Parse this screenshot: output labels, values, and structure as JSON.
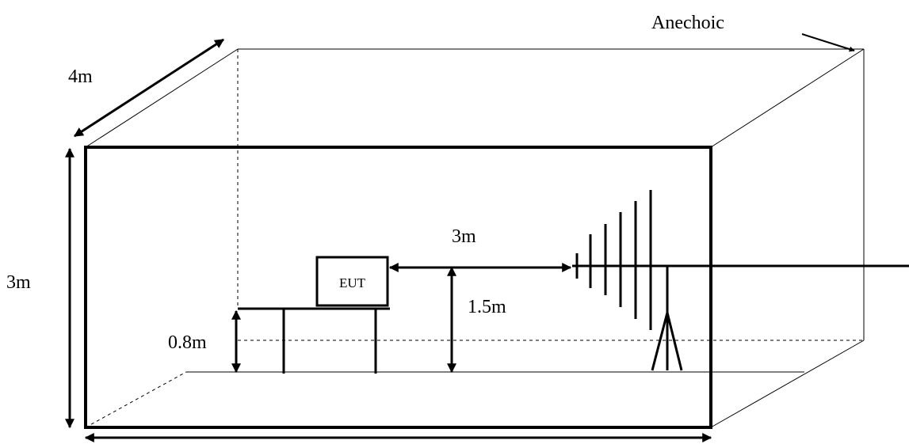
{
  "labels": {
    "chamber": "Anechoic",
    "depth": "4m",
    "height": "3m",
    "distance": "3m",
    "antenna_height": "1.5m",
    "table_height": "0.8m",
    "eut": "EUT"
  },
  "colors": {
    "stroke": "#000000",
    "background": "#ffffff"
  }
}
